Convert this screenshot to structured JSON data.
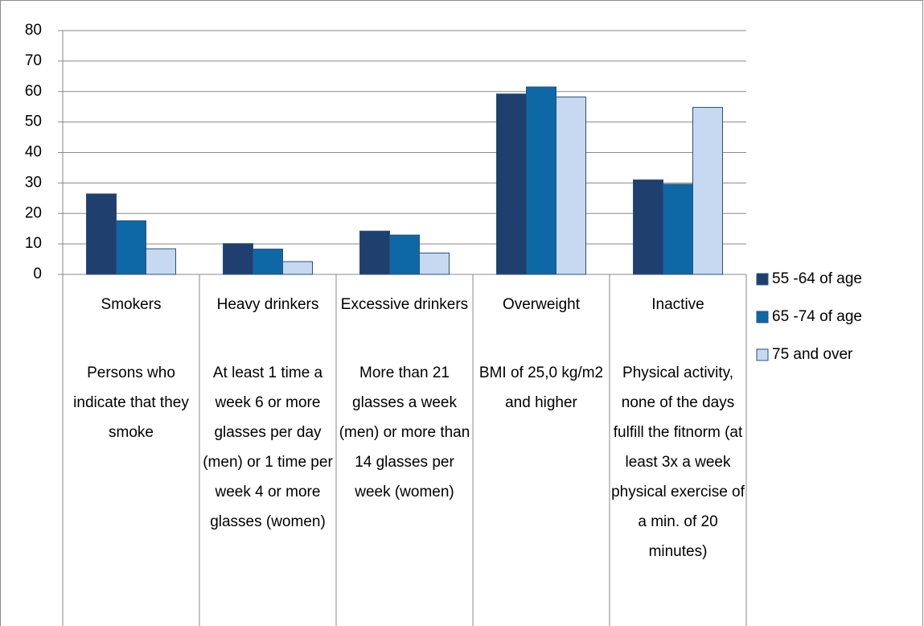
{
  "chart_data": {
    "type": "bar",
    "categories": [
      "Smokers",
      "Heavy drinkers",
      "Excessive drinkers",
      "Overweight",
      "Inactive"
    ],
    "descriptions": [
      "Persons who indicate that they smoke",
      "At least 1 time a week 6 or more glasses per day (men) or 1 time per week 4 or more glasses (women)",
      "More than 21 glasses a week (men) or more than 14 glasses per week (women)",
      "BMI of 25,0 kg/m2 and higher",
      "Physical activity, none of the days fulfill the fitnorm (at least 3x a week physical exercise of a min. of 20 minutes)"
    ],
    "series": [
      {
        "name": "55 -64 of age",
        "color": "#1f3f6e",
        "values": [
          26.4,
          10.1,
          14.2,
          59.2,
          31.0
        ]
      },
      {
        "name": "65 -74 of age",
        "color": "#0f68a6",
        "values": [
          17.6,
          8.3,
          12.9,
          61.5,
          29.6
        ]
      },
      {
        "name": "75 and over",
        "color": "#c6d9f0",
        "values": [
          8.4,
          4.2,
          7.0,
          58.2,
          54.8
        ]
      }
    ],
    "ylim": [
      0,
      80
    ],
    "yticks": [
      0,
      10,
      20,
      30,
      40,
      50,
      60,
      70,
      80
    ],
    "grid": true,
    "legend": "right"
  }
}
